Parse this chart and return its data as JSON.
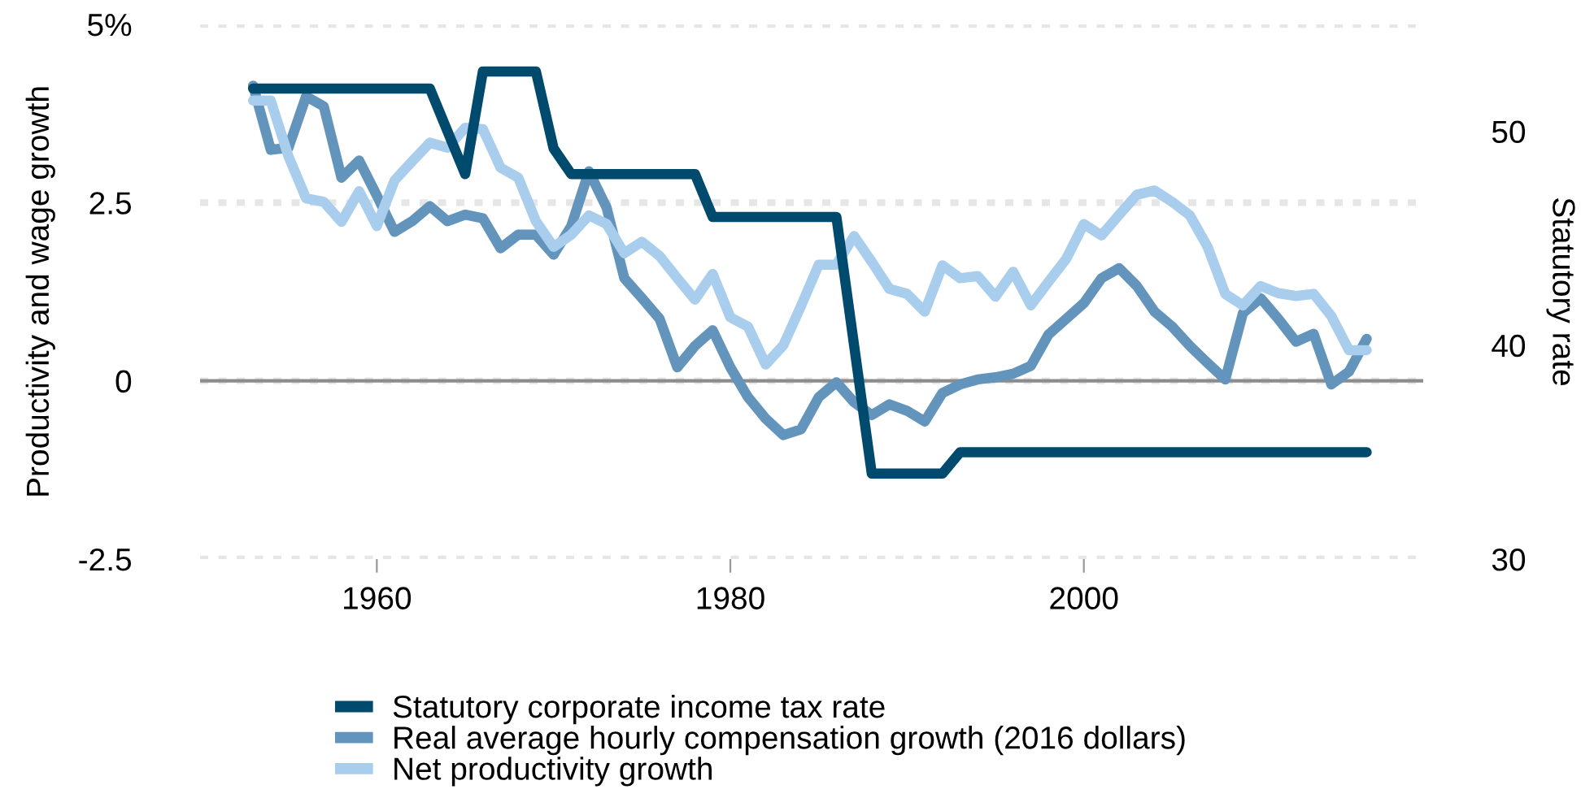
{
  "chart_data": {
    "type": "line",
    "ylabel": "Productivity and wage growth",
    "y2label": "Statutory rate",
    "x": [
      1953,
      1954,
      1955,
      1956,
      1957,
      1958,
      1959,
      1960,
      1961,
      1962,
      1963,
      1964,
      1965,
      1966,
      1967,
      1968,
      1969,
      1970,
      1971,
      1972,
      1973,
      1974,
      1975,
      1976,
      1977,
      1978,
      1979,
      1980,
      1981,
      1982,
      1983,
      1984,
      1985,
      1986,
      1987,
      1988,
      1989,
      1990,
      1991,
      1992,
      1993,
      1994,
      1995,
      1996,
      1997,
      1998,
      1999,
      2000,
      2001,
      2002,
      2003,
      2004,
      2005,
      2006,
      2007,
      2008,
      2009,
      2010,
      2011,
      2012,
      2013,
      2014,
      2015,
      2016
    ],
    "series": [
      {
        "name": "Statutory corporate income tax rate",
        "color": "#004a6e",
        "axis": "y2",
        "values": [
          52,
          52,
          52,
          52,
          52,
          52,
          52,
          52,
          52,
          52,
          52,
          50,
          48,
          52.8,
          52.8,
          52.8,
          52.8,
          49.2,
          48,
          48,
          48,
          48,
          48,
          48,
          48,
          48,
          46,
          46,
          46,
          46,
          46,
          46,
          46,
          46,
          40,
          34,
          34,
          34,
          34,
          34,
          35,
          35,
          35,
          35,
          35,
          35,
          35,
          35,
          35,
          35,
          35,
          35,
          35,
          35,
          35,
          35,
          35,
          35,
          35,
          35,
          35,
          35,
          35,
          35
        ]
      },
      {
        "name": "Real average hourly compensation growth (2016 dollars)",
        "color": "#6394bb",
        "values": [
          4.14,
          3.24,
          3.27,
          3.99,
          3.85,
          2.85,
          3.09,
          2.6,
          2.09,
          2.24,
          2.45,
          2.24,
          2.33,
          2.28,
          1.86,
          2.05,
          2.05,
          1.77,
          2.17,
          2.94,
          2.43,
          1.44,
          1.16,
          0.87,
          0.19,
          0.49,
          0.71,
          0.19,
          -0.23,
          -0.53,
          -0.76,
          -0.68,
          -0.23,
          -0.02,
          -0.3,
          -0.48,
          -0.33,
          -0.42,
          -0.57,
          -0.17,
          -0.05,
          0.02,
          0.05,
          0.1,
          0.21,
          0.65,
          0.87,
          1.09,
          1.44,
          1.58,
          1.33,
          0.97,
          0.76,
          0.49,
          0.25,
          0.02,
          0.95,
          1.16,
          0.87,
          0.55,
          0.66,
          -0.05,
          0.13,
          0.59
        ]
      },
      {
        "name": "Net productivity growth",
        "color": "#a9cdec",
        "values": [
          3.93,
          3.93,
          3.15,
          2.56,
          2.51,
          2.23,
          2.66,
          2.17,
          2.81,
          3.08,
          3.34,
          3.27,
          3.55,
          3.53,
          2.99,
          2.85,
          2.24,
          1.88,
          2.05,
          2.32,
          2.2,
          1.79,
          1.95,
          1.75,
          1.44,
          1.14,
          1.5,
          0.89,
          0.76,
          0.23,
          0.5,
          1.05,
          1.63,
          1.63,
          2.03,
          1.67,
          1.29,
          1.22,
          0.97,
          1.62,
          1.44,
          1.47,
          1.18,
          1.53,
          1.06,
          1.39,
          1.71,
          2.2,
          2.04,
          2.33,
          2.61,
          2.67,
          2.51,
          2.32,
          1.88,
          1.22,
          1.06,
          1.33,
          1.23,
          1.19,
          1.22,
          0.91,
          0.43,
          0.43
        ]
      }
    ],
    "xlim": [
      1950,
      2019.2
    ],
    "xticks": [
      1960,
      1980,
      2000
    ],
    "ylim": [
      -2.5,
      5
    ],
    "yticks": [
      -2.5,
      0,
      2.5,
      {
        "value": 5,
        "label": "5%"
      }
    ],
    "y2lim": [
      30,
      55
    ],
    "y2ticks": [
      30,
      40,
      50
    ],
    "ref_lines": [
      {
        "axis": "y",
        "value": 0,
        "color": "#8c8c8c",
        "line_style": "solid"
      }
    ],
    "grid": "y",
    "legend": "bottom",
    "marker": "none",
    "line_style": "solid"
  }
}
